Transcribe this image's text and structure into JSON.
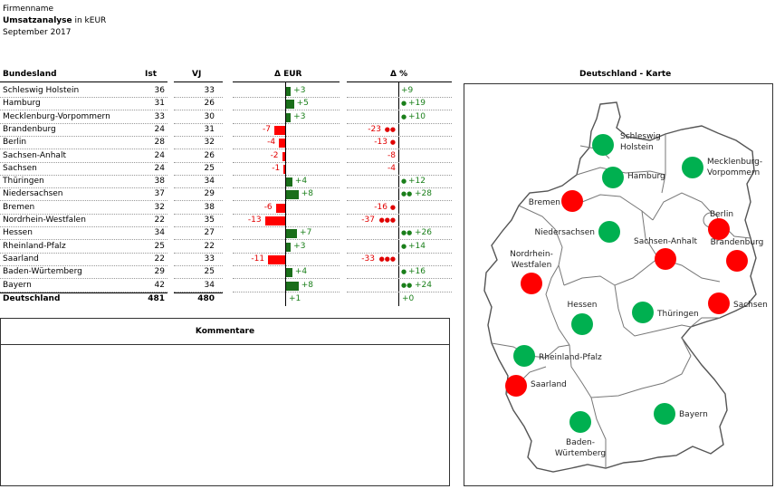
{
  "header": {
    "company": "Firmenname",
    "title_bold": "Umsatzanalyse",
    "title_rest": " in kEUR",
    "period": "September 2017"
  },
  "columns": {
    "region": "Bundesland",
    "ist": "Ist",
    "vj": "VJ",
    "delta_eur": "Δ EUR",
    "delta_pct": "Δ %",
    "map": "Deutschland - Karte"
  },
  "comments": {
    "title": "Kommentare"
  },
  "colors": {
    "positive": "#1a6e1a",
    "negative": "#ff0000",
    "dot_positive": "#00b050",
    "dot_negative": "#ff0000"
  },
  "chart_data": {
    "type": "table",
    "rows": [
      {
        "name": "Schleswig Holstein",
        "ist": 36,
        "vj": 33,
        "delta_eur": "+3",
        "delta_pct": "+9",
        "d": 3,
        "p": 9,
        "dots": 0
      },
      {
        "name": "Hamburg",
        "ist": 31,
        "vj": 26,
        "delta_eur": "+5",
        "delta_pct": "+19",
        "d": 5,
        "p": 19,
        "dots": 1
      },
      {
        "name": "Mecklenburg-Vorpommern",
        "ist": 33,
        "vj": 30,
        "delta_eur": "+3",
        "delta_pct": "+10",
        "d": 3,
        "p": 10,
        "dots": 1
      },
      {
        "name": "Brandenburg",
        "ist": 24,
        "vj": 31,
        "delta_eur": "-7",
        "delta_pct": "-23",
        "d": -7,
        "p": -23,
        "dots": 2
      },
      {
        "name": "Berlin",
        "ist": 28,
        "vj": 32,
        "delta_eur": "-4",
        "delta_pct": "-13",
        "d": -4,
        "p": -13,
        "dots": 1
      },
      {
        "name": "Sachsen-Anhalt",
        "ist": 24,
        "vj": 26,
        "delta_eur": "-2",
        "delta_pct": "-8",
        "d": -2,
        "p": -8,
        "dots": 0
      },
      {
        "name": "Sachsen",
        "ist": 24,
        "vj": 25,
        "delta_eur": "-1",
        "delta_pct": "-4",
        "d": -1,
        "p": -4,
        "dots": 0
      },
      {
        "name": "Thüringen",
        "ist": 38,
        "vj": 34,
        "delta_eur": "+4",
        "delta_pct": "+12",
        "d": 4,
        "p": 12,
        "dots": 1
      },
      {
        "name": "Niedersachsen",
        "ist": 37,
        "vj": 29,
        "delta_eur": "+8",
        "delta_pct": "+28",
        "d": 8,
        "p": 28,
        "dots": 2
      },
      {
        "name": "Bremen",
        "ist": 32,
        "vj": 38,
        "delta_eur": "-6",
        "delta_pct": "-16",
        "d": -6,
        "p": -16,
        "dots": 1
      },
      {
        "name": "Nordrhein-Westfalen",
        "ist": 22,
        "vj": 35,
        "delta_eur": "-13",
        "delta_pct": "-37",
        "d": -13,
        "p": -37,
        "dots": 3
      },
      {
        "name": "Hessen",
        "ist": 34,
        "vj": 27,
        "delta_eur": "+7",
        "delta_pct": "+26",
        "d": 7,
        "p": 26,
        "dots": 2
      },
      {
        "name": "Rheinland-Pfalz",
        "ist": 25,
        "vj": 22,
        "delta_eur": "+3",
        "delta_pct": "+14",
        "d": 3,
        "p": 14,
        "dots": 1
      },
      {
        "name": "Saarland",
        "ist": 22,
        "vj": 33,
        "delta_eur": "-11",
        "delta_pct": "-33",
        "d": -11,
        "p": -33,
        "dots": 3
      },
      {
        "name": "Baden-Würtemberg",
        "ist": 29,
        "vj": 25,
        "delta_eur": "+4",
        "delta_pct": "+16",
        "d": 4,
        "p": 16,
        "dots": 1
      },
      {
        "name": "Bayern",
        "ist": 42,
        "vj": 34,
        "delta_eur": "+8",
        "delta_pct": "+24",
        "d": 8,
        "p": 24,
        "dots": 2
      }
    ],
    "total": {
      "name": "Deutschland",
      "ist": 481,
      "vj": 480,
      "delta_eur": "+1",
      "delta_pct": "+0"
    }
  },
  "map_data": {
    "labels": [
      {
        "lines": [
          "Schleswig",
          "Holstein"
        ],
        "status": "positive"
      },
      {
        "lines": [
          "Mecklenburg-",
          "Vorpommern"
        ],
        "status": "positive"
      },
      {
        "lines": [
          "Hamburg"
        ],
        "status": "positive"
      },
      {
        "lines": [
          "Bremen"
        ],
        "status": "negative"
      },
      {
        "lines": [
          "Niedersachsen"
        ],
        "status": "positive"
      },
      {
        "lines": [
          "Berlin"
        ],
        "status": "negative"
      },
      {
        "lines": [
          "Brandenburg"
        ],
        "status": "negative"
      },
      {
        "lines": [
          "Sachsen-Anhalt"
        ],
        "status": "negative"
      },
      {
        "lines": [
          "Nordrhein-",
          "Westfalen"
        ],
        "status": "negative"
      },
      {
        "lines": [
          "Sachsen"
        ],
        "status": "negative"
      },
      {
        "lines": [
          "Hessen"
        ],
        "status": "positive"
      },
      {
        "lines": [
          "Thüringen"
        ],
        "status": "positive"
      },
      {
        "lines": [
          "Rheinland-Pfalz"
        ],
        "status": "positive"
      },
      {
        "lines": [
          "Saarland"
        ],
        "status": "negative"
      },
      {
        "lines": [
          "Bayern"
        ],
        "status": "positive"
      },
      {
        "lines": [
          "Baden-",
          "Würtemberg"
        ],
        "status": "positive"
      }
    ]
  }
}
